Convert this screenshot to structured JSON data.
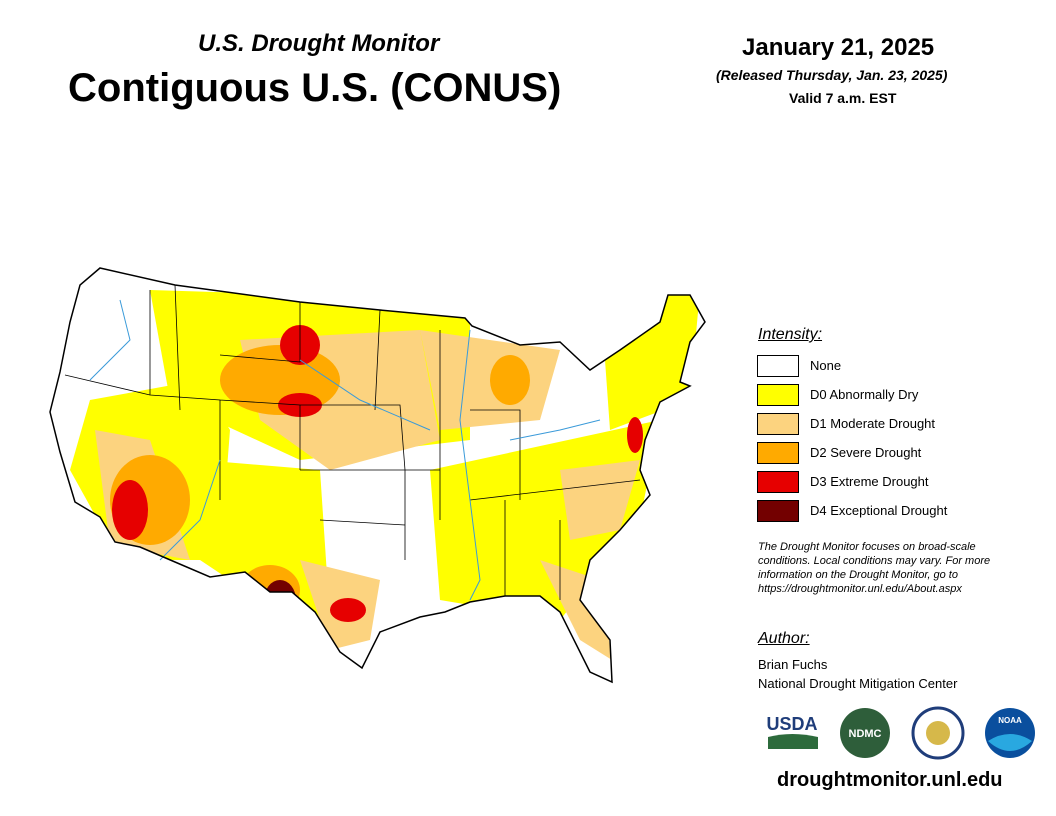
{
  "header": {
    "subtitle": "U.S. Drought Monitor",
    "title": "Contiguous U.S. (CONUS)",
    "date": "January 21, 2025",
    "released": "(Released Thursday, Jan. 23, 2025)",
    "valid": "Valid 7 a.m. EST"
  },
  "legend": {
    "title": "Intensity:",
    "items": [
      {
        "label": "None",
        "color": "#ffffff"
      },
      {
        "label": "D0 Abnormally Dry",
        "color": "#ffff00"
      },
      {
        "label": "D1 Moderate Drought",
        "color": "#fcd37f"
      },
      {
        "label": "D2 Severe Drought",
        "color": "#ffaa00"
      },
      {
        "label": "D3 Extreme Drought",
        "color": "#e60000"
      },
      {
        "label": "D4 Exceptional Drought",
        "color": "#730000"
      }
    ]
  },
  "note": [
    "The Drought Monitor focuses on broad-scale",
    "conditions. Local conditions may vary. For more",
    "information on the Drought Monitor, go to",
    "https://droughtmonitor.unl.edu/About.aspx"
  ],
  "author": {
    "title": "Author:",
    "name": "Brian Fuchs",
    "org": "National Drought Mitigation Center"
  },
  "logos": [
    "USDA",
    "NDMC",
    "NOAA"
  ],
  "url": "droughtmonitor.unl.edu"
}
